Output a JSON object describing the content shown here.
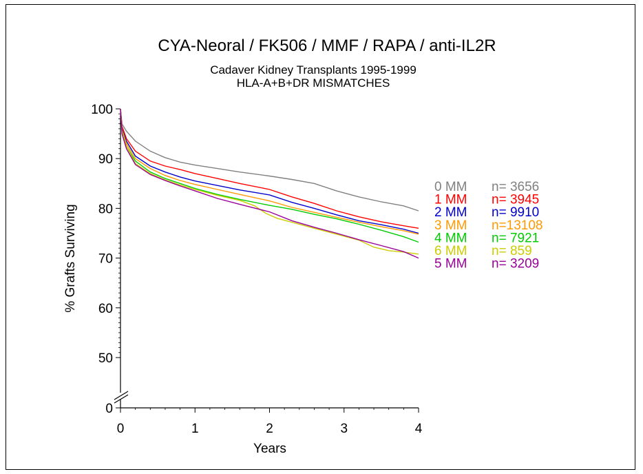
{
  "chart_data": {
    "type": "line",
    "title": "CYA-Neoral / FK506 / MMF / RAPA / anti-IL2R",
    "subtitle_lines": [
      "Cadaver Kidney Transplants 1995-1999",
      "HLA-A+B+DR MISMATCHES"
    ],
    "xlabel": "Years",
    "ylabel": "% Grafts Surviving",
    "xlim": [
      0,
      4
    ],
    "ylim": [
      0,
      100
    ],
    "axis_break": true,
    "x_ticks": [
      "0",
      "1",
      "2",
      "3",
      "4"
    ],
    "y_ticks": [
      "0",
      "50",
      "60",
      "70",
      "80",
      "90",
      "100"
    ],
    "grid": false,
    "legend_position": "right",
    "series": [
      {
        "name": "0 MM",
        "n_label": "n= 3656",
        "color": "#808080",
        "x": [
          0,
          0.02,
          0.08,
          0.2,
          0.4,
          0.6,
          0.8,
          1.0,
          1.3,
          1.6,
          2.0,
          2.3,
          2.6,
          2.9,
          3.2,
          3.5,
          3.8,
          4.0
        ],
        "y": [
          100,
          97,
          95.5,
          93.5,
          91.5,
          90.2,
          89.3,
          88.7,
          88.0,
          87.3,
          86.5,
          85.8,
          85.0,
          83.5,
          82.3,
          81.3,
          80.5,
          79.5
        ]
      },
      {
        "name": "1 MM",
        "n_label": "n= 3945",
        "color": "#ff0000",
        "x": [
          0,
          0.02,
          0.08,
          0.2,
          0.4,
          0.6,
          0.8,
          1.0,
          1.3,
          1.6,
          2.0,
          2.3,
          2.6,
          2.9,
          3.2,
          3.5,
          3.8,
          4.0
        ],
        "y": [
          100,
          96.5,
          94,
          91.5,
          89.5,
          88.5,
          87.8,
          87.0,
          86.0,
          85.0,
          83.8,
          82.3,
          81.0,
          79.5,
          78.3,
          77.3,
          76.5,
          76.0
        ]
      },
      {
        "name": "2 MM",
        "n_label": "n= 9910",
        "color": "#0000cc",
        "x": [
          0,
          0.02,
          0.08,
          0.2,
          0.4,
          0.6,
          0.8,
          1.0,
          1.3,
          1.6,
          2.0,
          2.3,
          2.6,
          2.9,
          3.2,
          3.5,
          3.8,
          4.0
        ],
        "y": [
          100,
          96,
          93.5,
          90.5,
          88.5,
          87.3,
          86.3,
          85.5,
          84.6,
          83.7,
          82.7,
          81.2,
          80.0,
          78.7,
          77.5,
          76.7,
          75.8,
          75.0
        ]
      },
      {
        "name": "3 MM",
        "n_label": "n=13108",
        "color": "#ff9900",
        "x": [
          0,
          0.02,
          0.08,
          0.2,
          0.4,
          0.6,
          0.8,
          1.0,
          1.3,
          1.6,
          2.0,
          2.3,
          2.6,
          2.9,
          3.2,
          3.5,
          3.8,
          4.0
        ],
        "y": [
          100,
          95.8,
          93,
          90,
          88,
          86.6,
          85.6,
          84.8,
          83.8,
          82.8,
          81.5,
          80.2,
          79.2,
          78.2,
          77.2,
          76.3,
          75.5,
          74.8
        ]
      },
      {
        "name": "4 MM",
        "n_label": "n= 7921",
        "color": "#00cc00",
        "x": [
          0,
          0.02,
          0.08,
          0.2,
          0.4,
          0.6,
          0.8,
          1.0,
          1.3,
          1.6,
          2.0,
          2.3,
          2.6,
          2.9,
          3.2,
          3.5,
          3.8,
          4.0
        ],
        "y": [
          100,
          95.5,
          92.5,
          89.5,
          87.3,
          86.0,
          85.0,
          84.0,
          82.8,
          81.8,
          80.6,
          79.8,
          78.8,
          77.9,
          76.8,
          75.6,
          74.3,
          73.2
        ]
      },
      {
        "name": "6 MM",
        "n_label": "n= 859",
        "color": "#cccc00",
        "x": [
          0,
          0.02,
          0.08,
          0.2,
          0.4,
          0.6,
          0.8,
          1.0,
          1.3,
          1.6,
          1.8,
          1.95,
          2.1,
          2.3,
          2.6,
          2.9,
          3.2,
          3.4,
          3.6,
          3.8,
          4.0
        ],
        "y": [
          100,
          95.5,
          92.5,
          89,
          87.0,
          85.7,
          84.7,
          83.8,
          82.6,
          81.6,
          80.5,
          79.0,
          78.0,
          77.2,
          76.0,
          74.8,
          73.6,
          72.2,
          71.5,
          71.2,
          70.8
        ]
      },
      {
        "name": "5 MM",
        "n_label": "n= 3209",
        "color": "#990099",
        "x": [
          0,
          0.02,
          0.08,
          0.2,
          0.4,
          0.6,
          0.8,
          1.0,
          1.3,
          1.6,
          2.0,
          2.3,
          2.6,
          2.9,
          3.2,
          3.5,
          3.8,
          4.0
        ],
        "y": [
          100,
          95,
          92,
          88.8,
          86.8,
          85.6,
          84.5,
          83.5,
          82.0,
          80.8,
          79.3,
          77.5,
          76.2,
          75.0,
          73.7,
          72.5,
          71.3,
          70.0
        ]
      }
    ]
  }
}
